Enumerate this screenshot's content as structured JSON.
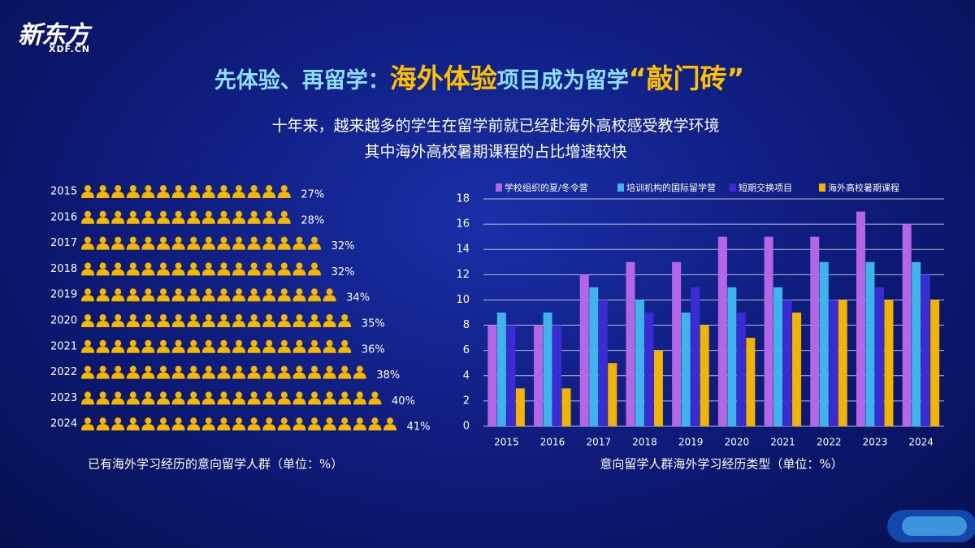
{
  "header": {
    "logo": "新东方",
    "logo_sub": "XDF.CN",
    "title": [
      "先体验、再留学：",
      "海外体验",
      "项目成为留学",
      "“敲门砖”"
    ],
    "subtitle": [
      "十年来，越来越多的学生在留学前就已经赴海外高校感受教学环境",
      "其中海外高校暑期课程的占比增速较快"
    ]
  },
  "chart_data": [
    {
      "type": "pictogram",
      "xlabel": "已有海外学习经历的意向留学人群（单位：%）",
      "categories": [
        "2015",
        "2016",
        "2017",
        "2018",
        "2019",
        "2020",
        "2021",
        "2022",
        "2023",
        "2024"
      ],
      "values": [
        27,
        28,
        32,
        32,
        34,
        35,
        36,
        38,
        40,
        41
      ],
      "value_labels": [
        "27%",
        "28%",
        "32%",
        "32%",
        "34%",
        "35%",
        "36%",
        "38%",
        "40%",
        "41%"
      ],
      "color": "#f5b800"
    },
    {
      "type": "bar",
      "xlabel": "意向留学人群海外学习经历类型（单位：%）",
      "categories": [
        "2015",
        "2016",
        "2017",
        "2018",
        "2019",
        "2020",
        "2021",
        "2022",
        "2023",
        "2024"
      ],
      "series": [
        {
          "name": "学校组织的夏/冬令营",
          "color": "#b466e6",
          "values": [
            8,
            8,
            12,
            13,
            13,
            15,
            15,
            15,
            17,
            16
          ]
        },
        {
          "name": "培训机构的国际留学营",
          "color": "#3fb4ec",
          "values": [
            9,
            9,
            11,
            10,
            9,
            11,
            11,
            13,
            13,
            13
          ]
        },
        {
          "name": "短期交换项目",
          "color": "#3a2bd4",
          "values": [
            8,
            8,
            10,
            9,
            11,
            9,
            10,
            10,
            11,
            12
          ]
        },
        {
          "name": "海外高校暑期课程",
          "color": "#f2b400",
          "values": [
            3,
            3,
            5,
            6,
            8,
            7,
            9,
            10,
            10,
            10
          ]
        }
      ],
      "ylim": [
        0,
        18
      ],
      "yticks": [
        0,
        2,
        4,
        6,
        8,
        10,
        12,
        14,
        16,
        18
      ],
      "grid": true
    }
  ]
}
